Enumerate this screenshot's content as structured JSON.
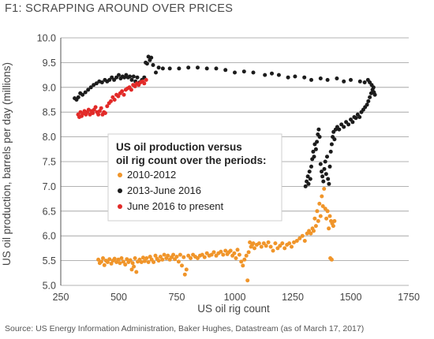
{
  "figure_title": "F1: SCRAPPING AROUND OVER PRICES",
  "source": "Source: US Energy Information Administration, Baker Hughes, Datastream (as of March 17, 2017)",
  "chart_data": {
    "type": "scatter",
    "title": "",
    "xlabel": "US oil rig count",
    "ylabel": "US oil production, barrels per day (millions)",
    "xlim": [
      250,
      1750
    ],
    "ylim": [
      5.0,
      10.0
    ],
    "xticks": [
      250,
      500,
      750,
      1000,
      1250,
      1500,
      1750
    ],
    "yticks": [
      5.0,
      5.5,
      6.0,
      6.5,
      7.0,
      7.5,
      8.0,
      8.5,
      9.0,
      9.5,
      10.0
    ],
    "xtick_labels": [
      "250",
      "500",
      "750",
      "1000",
      "1250",
      "1500",
      "1750"
    ],
    "ytick_labels": [
      "5.0",
      "5.5",
      "6.0",
      "6.5",
      "7.0",
      "7.5",
      "8.0",
      "8.5",
      "9.0",
      "9.5",
      "10.0"
    ],
    "grid": true,
    "legend": {
      "title_lines": [
        "US oil production versus",
        "oil rig count over the periods:"
      ],
      "placement": "center"
    },
    "series": [
      {
        "name": "2010-2012",
        "color": "#f0952a",
        "points": [
          [
            412,
            5.52
          ],
          [
            418,
            5.45
          ],
          [
            425,
            5.48
          ],
          [
            432,
            5.55
          ],
          [
            438,
            5.41
          ],
          [
            445,
            5.5
          ],
          [
            452,
            5.47
          ],
          [
            460,
            5.53
          ],
          [
            468,
            5.44
          ],
          [
            475,
            5.5
          ],
          [
            482,
            5.54
          ],
          [
            490,
            5.47
          ],
          [
            498,
            5.52
          ],
          [
            505,
            5.45
          ],
          [
            512,
            5.55
          ],
          [
            520,
            5.48
          ],
          [
            528,
            5.42
          ],
          [
            535,
            5.53
          ],
          [
            542,
            5.47
          ],
          [
            550,
            5.51
          ],
          [
            556,
            5.32
          ],
          [
            560,
            5.45
          ],
          [
            565,
            5.38
          ],
          [
            570,
            5.55
          ],
          [
            576,
            5.27
          ],
          [
            582,
            5.48
          ],
          [
            590,
            5.52
          ],
          [
            598,
            5.47
          ],
          [
            605,
            5.56
          ],
          [
            612,
            5.49
          ],
          [
            620,
            5.55
          ],
          [
            628,
            5.47
          ],
          [
            635,
            5.58
          ],
          [
            642,
            5.52
          ],
          [
            650,
            5.47
          ],
          [
            658,
            5.6
          ],
          [
            665,
            5.54
          ],
          [
            672,
            5.5
          ],
          [
            680,
            5.58
          ],
          [
            688,
            5.52
          ],
          [
            696,
            5.62
          ],
          [
            705,
            5.55
          ],
          [
            712,
            5.6
          ],
          [
            720,
            5.52
          ],
          [
            728,
            5.57
          ],
          [
            735,
            5.62
          ],
          [
            742,
            5.53
          ],
          [
            750,
            5.58
          ],
          [
            758,
            5.48
          ],
          [
            765,
            5.62
          ],
          [
            772,
            5.4
          ],
          [
            780,
            5.57
          ],
          [
            785,
            5.22
          ],
          [
            792,
            5.32
          ],
          [
            800,
            5.6
          ],
          [
            810,
            5.55
          ],
          [
            820,
            5.62
          ],
          [
            830,
            5.58
          ],
          [
            840,
            5.55
          ],
          [
            850,
            5.6
          ],
          [
            860,
            5.62
          ],
          [
            870,
            5.57
          ],
          [
            880,
            5.65
          ],
          [
            890,
            5.6
          ],
          [
            900,
            5.62
          ],
          [
            910,
            5.67
          ],
          [
            920,
            5.6
          ],
          [
            930,
            5.65
          ],
          [
            940,
            5.68
          ],
          [
            950,
            5.62
          ],
          [
            960,
            5.7
          ],
          [
            968,
            5.63
          ],
          [
            975,
            5.67
          ],
          [
            982,
            5.7
          ],
          [
            990,
            5.6
          ],
          [
            998,
            5.65
          ],
          [
            1005,
            5.55
          ],
          [
            1012,
            5.72
          ],
          [
            1020,
            5.62
          ],
          [
            1028,
            5.48
          ],
          [
            1035,
            5.4
          ],
          [
            1042,
            5.52
          ],
          [
            1050,
            5.6
          ],
          [
            1055,
            5.1
          ],
          [
            1060,
            5.67
          ],
          [
            1065,
            5.87
          ],
          [
            1070,
            5.78
          ],
          [
            1075,
            5.82
          ],
          [
            1080,
            5.85
          ],
          [
            1085,
            5.75
          ],
          [
            1095,
            5.82
          ],
          [
            1105,
            5.85
          ],
          [
            1115,
            5.78
          ],
          [
            1125,
            5.85
          ],
          [
            1135,
            5.8
          ],
          [
            1145,
            5.87
          ],
          [
            1155,
            5.78
          ],
          [
            1165,
            5.7
          ],
          [
            1175,
            5.85
          ],
          [
            1185,
            5.75
          ],
          [
            1195,
            5.8
          ],
          [
            1205,
            5.85
          ],
          [
            1215,
            5.75
          ],
          [
            1225,
            5.82
          ],
          [
            1235,
            5.85
          ],
          [
            1245,
            5.78
          ],
          [
            1255,
            5.87
          ],
          [
            1268,
            5.9
          ],
          [
            1280,
            5.95
          ],
          [
            1292,
            6.0
          ],
          [
            1302,
            5.9
          ],
          [
            1312,
            6.05
          ],
          [
            1320,
            6.1
          ],
          [
            1328,
            6.05
          ],
          [
            1335,
            6.15
          ],
          [
            1340,
            6.1
          ],
          [
            1345,
            6.35
          ],
          [
            1350,
            6.2
          ],
          [
            1355,
            6.5
          ],
          [
            1360,
            6.3
          ],
          [
            1365,
            6.65
          ],
          [
            1370,
            6.4
          ],
          [
            1375,
            6.8
          ],
          [
            1380,
            6.6
          ],
          [
            1385,
            6.95
          ],
          [
            1390,
            6.55
          ],
          [
            1395,
            6.35
          ],
          [
            1400,
            6.5
          ],
          [
            1405,
            6.15
          ],
          [
            1410,
            6.4
          ],
          [
            1412,
            5.55
          ],
          [
            1415,
            6.3
          ],
          [
            1418,
            5.52
          ],
          [
            1420,
            6.25
          ],
          [
            1425,
            6.2
          ],
          [
            1430,
            6.3
          ]
        ]
      },
      {
        "name": "2013-June 2016",
        "color": "#1c1c1c",
        "points": [
          [
            1305,
            7.0
          ],
          [
            1310,
            7.1
          ],
          [
            1315,
            7.2
          ],
          [
            1318,
            7.05
          ],
          [
            1322,
            7.3
          ],
          [
            1326,
            7.15
          ],
          [
            1330,
            7.4
          ],
          [
            1334,
            7.55
          ],
          [
            1338,
            7.7
          ],
          [
            1342,
            7.6
          ],
          [
            1345,
            7.85
          ],
          [
            1350,
            7.75
          ],
          [
            1354,
            7.9
          ],
          [
            1358,
            8.05
          ],
          [
            1362,
            8.15
          ],
          [
            1366,
            8.0
          ],
          [
            1370,
            7.45
          ],
          [
            1374,
            7.3
          ],
          [
            1378,
            7.2
          ],
          [
            1382,
            7.1
          ],
          [
            1386,
            7.35
          ],
          [
            1390,
            7.5
          ],
          [
            1394,
            7.25
          ],
          [
            1398,
            7.6
          ],
          [
            1402,
            7.15
          ],
          [
            1406,
            7.05
          ],
          [
            1410,
            7.4
          ],
          [
            1414,
            7.7
          ],
          [
            1418,
            7.85
          ],
          [
            1422,
            8.0
          ],
          [
            1426,
            8.1
          ],
          [
            1430,
            7.95
          ],
          [
            1435,
            8.15
          ],
          [
            1442,
            8.2
          ],
          [
            1450,
            8.15
          ],
          [
            1460,
            8.25
          ],
          [
            1470,
            8.2
          ],
          [
            1480,
            8.3
          ],
          [
            1490,
            8.25
          ],
          [
            1500,
            8.35
          ],
          [
            1508,
            8.3
          ],
          [
            1515,
            8.4
          ],
          [
            1522,
            8.38
          ],
          [
            1530,
            8.45
          ],
          [
            1538,
            8.4
          ],
          [
            1546,
            8.5
          ],
          [
            1554,
            8.55
          ],
          [
            1562,
            8.6
          ],
          [
            1570,
            8.65
          ],
          [
            1576,
            8.72
          ],
          [
            1582,
            8.8
          ],
          [
            1588,
            8.88
          ],
          [
            1594,
            8.95
          ],
          [
            1600,
            8.9
          ],
          [
            1604,
            8.85
          ],
          [
            1598,
            9.0
          ],
          [
            1590,
            9.05
          ],
          [
            1582,
            9.1
          ],
          [
            1574,
            9.15
          ],
          [
            1560,
            9.1
          ],
          [
            1540,
            9.12
          ],
          [
            1500,
            9.15
          ],
          [
            1470,
            9.12
          ],
          [
            1440,
            9.18
          ],
          [
            1400,
            9.15
          ],
          [
            1370,
            9.18
          ],
          [
            1330,
            9.15
          ],
          [
            1300,
            9.2
          ],
          [
            1260,
            9.22
          ],
          [
            1230,
            9.2
          ],
          [
            1190,
            9.25
          ],
          [
            1160,
            9.28
          ],
          [
            1130,
            9.25
          ],
          [
            1080,
            9.3
          ],
          [
            1040,
            9.32
          ],
          [
            1000,
            9.3
          ],
          [
            960,
            9.35
          ],
          [
            920,
            9.38
          ],
          [
            880,
            9.38
          ],
          [
            840,
            9.4
          ],
          [
            800,
            9.4
          ],
          [
            760,
            9.38
          ],
          [
            720,
            9.38
          ],
          [
            690,
            9.38
          ],
          [
            672,
            9.4
          ],
          [
            660,
            9.3
          ],
          [
            648,
            9.45
          ],
          [
            640,
            9.6
          ],
          [
            634,
            9.55
          ],
          [
            628,
            9.62
          ],
          [
            622,
            9.48
          ],
          [
            616,
            9.5
          ],
          [
            610,
            9.2
          ],
          [
            600,
            9.15
          ],
          [
            590,
            9.1
          ],
          [
            580,
            9.2
          ],
          [
            572,
            9.12
          ],
          [
            564,
            9.22
          ],
          [
            556,
            9.15
          ],
          [
            548,
            9.22
          ],
          [
            540,
            9.2
          ],
          [
            532,
            9.25
          ],
          [
            524,
            9.2
          ],
          [
            516,
            9.22
          ],
          [
            508,
            9.18
          ],
          [
            500,
            9.25
          ],
          [
            490,
            9.2
          ],
          [
            480,
            9.15
          ],
          [
            470,
            9.2
          ],
          [
            460,
            9.15
          ],
          [
            450,
            9.12
          ],
          [
            440,
            9.15
          ],
          [
            428,
            9.1
          ],
          [
            416,
            9.12
          ],
          [
            404,
            9.08
          ],
          [
            392,
            9.05
          ],
          [
            380,
            9.0
          ],
          [
            368,
            8.95
          ],
          [
            356,
            8.9
          ],
          [
            344,
            8.85
          ],
          [
            334,
            8.88
          ],
          [
            326,
            8.8
          ],
          [
            318,
            8.75
          ],
          [
            310,
            8.78
          ]
        ]
      },
      {
        "name": "June 2016 to present",
        "color": "#e22a28",
        "points": [
          [
            325,
            8.45
          ],
          [
            330,
            8.4
          ],
          [
            335,
            8.5
          ],
          [
            340,
            8.42
          ],
          [
            345,
            8.47
          ],
          [
            352,
            8.52
          ],
          [
            358,
            8.45
          ],
          [
            364,
            8.5
          ],
          [
            370,
            8.55
          ],
          [
            376,
            8.45
          ],
          [
            382,
            8.52
          ],
          [
            388,
            8.48
          ],
          [
            394,
            8.55
          ],
          [
            400,
            8.6
          ],
          [
            406,
            8.5
          ],
          [
            412,
            8.45
          ],
          [
            418,
            8.52
          ],
          [
            424,
            8.58
          ],
          [
            430,
            8.45
          ],
          [
            436,
            8.5
          ],
          [
            442,
            8.48
          ],
          [
            450,
            8.62
          ],
          [
            458,
            8.68
          ],
          [
            466,
            8.72
          ],
          [
            474,
            8.8
          ],
          [
            482,
            8.75
          ],
          [
            490,
            8.85
          ],
          [
            498,
            8.82
          ],
          [
            506,
            8.88
          ],
          [
            514,
            8.92
          ],
          [
            522,
            8.85
          ],
          [
            530,
            8.95
          ],
          [
            538,
            8.98
          ],
          [
            546,
            9.0
          ],
          [
            554,
            8.95
          ],
          [
            562,
            9.05
          ],
          [
            570,
            9.02
          ],
          [
            578,
            9.08
          ],
          [
            586,
            9.05
          ],
          [
            594,
            9.1
          ],
          [
            602,
            9.12
          ],
          [
            610,
            9.08
          ],
          [
            618,
            9.15
          ]
        ]
      }
    ]
  }
}
